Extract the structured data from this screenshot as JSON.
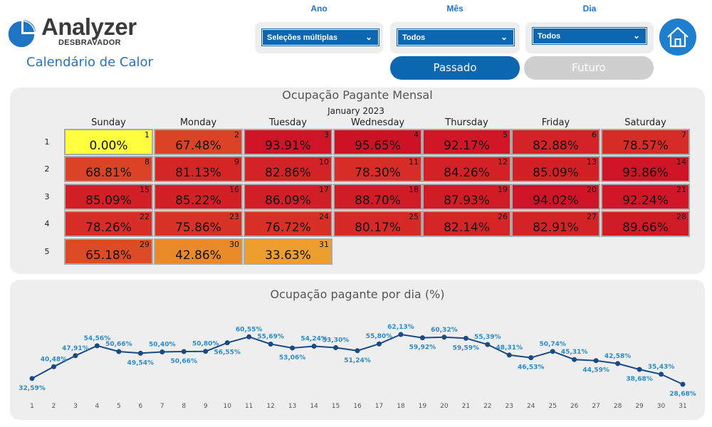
{
  "header": {
    "logo_name": "Analyzer",
    "logo_sub": "DESBRAVADOR",
    "title": "Calendário de Calor"
  },
  "filters": [
    {
      "label": "Ano",
      "value": "Seleções múltiplas"
    },
    {
      "label": "Mês",
      "value": "Todos"
    },
    {
      "label": "Dia",
      "value": "Todos"
    }
  ],
  "buttons": {
    "past": "Passado",
    "future": "Futuro",
    "home_icon": "home-icon"
  },
  "calendar": {
    "title": "Ocupação Pagante Mensal",
    "month": "January 2023",
    "weekdays": [
      "Sunday",
      "Monday",
      "Tuesday",
      "Wednesday",
      "Thursday",
      "Friday",
      "Saturday"
    ],
    "weeks": [
      "1",
      "2",
      "3",
      "4",
      "5"
    ],
    "days": [
      {
        "day": "1",
        "pct": "0.00%",
        "color": "#ffff40"
      },
      {
        "day": "2",
        "pct": "67.48%",
        "color": "#dc4326"
      },
      {
        "day": "3",
        "pct": "93.91%",
        "color": "#cf1427"
      },
      {
        "day": "4",
        "pct": "95.65%",
        "color": "#ce1226"
      },
      {
        "day": "5",
        "pct": "92.17%",
        "color": "#d01627"
      },
      {
        "day": "6",
        "pct": "82.88%",
        "color": "#d42326"
      },
      {
        "day": "7",
        "pct": "78.57%",
        "color": "#d72b27"
      },
      {
        "day": "8",
        "pct": "68.81%",
        "color": "#dc4226"
      },
      {
        "day": "9",
        "pct": "81.13%",
        "color": "#d52626"
      },
      {
        "day": "10",
        "pct": "82.86%",
        "color": "#d42326"
      },
      {
        "day": "11",
        "pct": "78.30%",
        "color": "#d72c27"
      },
      {
        "day": "12",
        "pct": "84.26%",
        "color": "#d32126"
      },
      {
        "day": "13",
        "pct": "85.09%",
        "color": "#d32026"
      },
      {
        "day": "14",
        "pct": "93.86%",
        "color": "#cf1427"
      },
      {
        "day": "15",
        "pct": "85.09%",
        "color": "#d32026"
      },
      {
        "day": "16",
        "pct": "85.22%",
        "color": "#d32026"
      },
      {
        "day": "17",
        "pct": "86.09%",
        "color": "#d21e26"
      },
      {
        "day": "18",
        "pct": "88.70%",
        "color": "#d11b26"
      },
      {
        "day": "19",
        "pct": "87.93%",
        "color": "#d11c26"
      },
      {
        "day": "20",
        "pct": "94.02%",
        "color": "#cf1427"
      },
      {
        "day": "21",
        "pct": "92.24%",
        "color": "#d01627"
      },
      {
        "day": "22",
        "pct": "78.26%",
        "color": "#d72c27"
      },
      {
        "day": "23",
        "pct": "75.86%",
        "color": "#d83227"
      },
      {
        "day": "24",
        "pct": "76.72%",
        "color": "#d83027"
      },
      {
        "day": "25",
        "pct": "80.17%",
        "color": "#d62827"
      },
      {
        "day": "26",
        "pct": "82.14%",
        "color": "#d52426"
      },
      {
        "day": "27",
        "pct": "82.91%",
        "color": "#d42326"
      },
      {
        "day": "28",
        "pct": "89.66%",
        "color": "#d01a26"
      },
      {
        "day": "29",
        "pct": "65.18%",
        "color": "#dd4a26"
      },
      {
        "day": "30",
        "pct": "42.86%",
        "color": "#e88a2a"
      },
      {
        "day": "31",
        "pct": "33.63%",
        "color": "#ec9e2e"
      }
    ]
  },
  "chart_title": "Ocupação pagante por dia (%)",
  "chart_data": {
    "type": "line",
    "title": "Ocupação pagante por dia (%)",
    "x": [
      "1",
      "2",
      "3",
      "4",
      "5",
      "6",
      "7",
      "8",
      "9",
      "10",
      "11",
      "12",
      "13",
      "14",
      "15",
      "16",
      "17",
      "18",
      "19",
      "20",
      "21",
      "22",
      "23",
      "24",
      "25",
      "26",
      "27",
      "28",
      "29",
      "30",
      "31"
    ],
    "series": [
      {
        "values": [
          32.59,
          40.48,
          47.91,
          54.56,
          50.66,
          49.54,
          50.4,
          50.66,
          50.8,
          56.55,
          60.55,
          55.69,
          53.06,
          54.24,
          53.3,
          51.24,
          55.8,
          62.13,
          59.92,
          60.32,
          59.59,
          55.39,
          48.31,
          46.53,
          50.74,
          45.31,
          44.59,
          42.58,
          38.68,
          35.43,
          28.68
        ],
        "labels": [
          "32,59%",
          "40,48%",
          "47,91%",
          "54,56%",
          "50,66%",
          "49,54%",
          "50,40%",
          "50,66%",
          "50,80%",
          "56,55%",
          "60,55%",
          "55,69%",
          "53,06%",
          "54,24%",
          "53,30%",
          "51,24%",
          "55,80%",
          "62,13%",
          "59,92%",
          "60,32%",
          "59,59%",
          "55,39%",
          "48,31%",
          "46,53%",
          "50,74%",
          "45,31%",
          "44,59%",
          "42,58%",
          "38,68%",
          "35,43%",
          "28,68%"
        ],
        "label_positions": [
          "below",
          "above",
          "above",
          "above",
          "above",
          "below",
          "above",
          "below",
          "above",
          "below",
          "above",
          "above",
          "below",
          "above",
          "above",
          "below",
          "above",
          "above",
          "below",
          "above",
          "below",
          "above",
          "above",
          "below",
          "above",
          "above",
          "below",
          "above",
          "below",
          "above",
          "below"
        ],
        "color": "#1a4a86",
        "label_color": "#2a8cc8"
      }
    ],
    "ylim": [
      20,
      70
    ],
    "grid": false
  }
}
